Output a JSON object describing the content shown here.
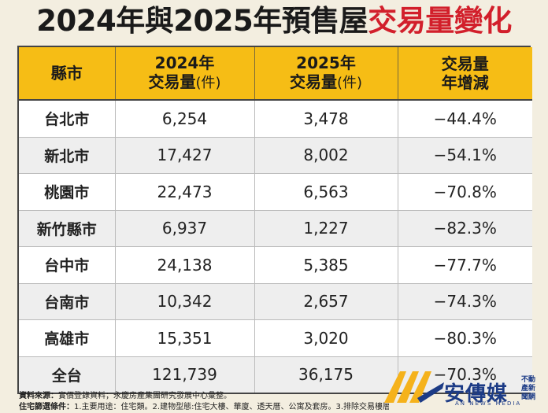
{
  "title": {
    "part1": "2024年與2025年預售屋",
    "part2": "交易量變化"
  },
  "headers": {
    "county": "縣市",
    "y2024_line1": "2024年",
    "y2024_line2": "交易量",
    "y2024_unit": "(件)",
    "y2025_line1": "2025年",
    "y2025_line2": "交易量",
    "y2025_unit": "(件)",
    "change_line1": "交易量",
    "change_line2": "年增減"
  },
  "rows": [
    {
      "county": "台北市",
      "v2024": "6,254",
      "v2025": "3,478",
      "change": "−44.4%"
    },
    {
      "county": "新北市",
      "v2024": "17,427",
      "v2025": "8,002",
      "change": "−54.1%"
    },
    {
      "county": "桃園市",
      "v2024": "22,473",
      "v2025": "6,563",
      "change": "−70.8%"
    },
    {
      "county": "新竹縣市",
      "v2024": "6,937",
      "v2025": "1,227",
      "change": "−82.3%"
    },
    {
      "county": "台中市",
      "v2024": "24,138",
      "v2025": "5,385",
      "change": "−77.7%"
    },
    {
      "county": "台南市",
      "v2024": "10,342",
      "v2025": "2,657",
      "change": "−74.3%"
    },
    {
      "county": "高雄市",
      "v2024": "15,351",
      "v2025": "3,020",
      "change": "−80.3%"
    },
    {
      "county": "全台",
      "v2024": "121,739",
      "v2025": "36,175",
      "change": "−70.3%"
    }
  ],
  "footer": {
    "source_label": "資料來源：",
    "source_text": "實價登錄資料；永慶房產集團研究發展中心彙整。",
    "criteria_label": "住宅篩選條件：",
    "criteria_text": "1.主要用途：住宅類。2.建物型態:住宅大樓、華廈、透天厝、公寓及套房。3.排除交易樓層一樓及親友交易"
  },
  "logo": {
    "name": "安傳媒",
    "side": "不動產新聞網",
    "sub": "AN NEWS MEDIA",
    "colors": {
      "gold": "#f5b21b",
      "blue": "#1c3b86"
    }
  }
}
